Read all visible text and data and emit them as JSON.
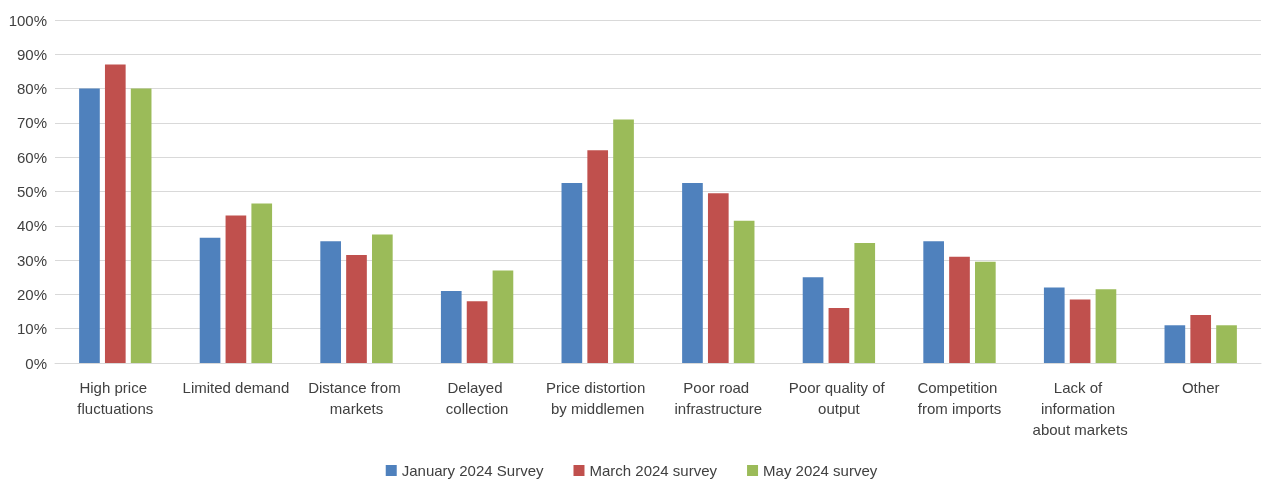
{
  "chart_data": {
    "type": "bar",
    "categories": [
      "High price fluctuations",
      "Limited demand",
      "Distance from markets",
      "Delayed collection",
      "Price distortion by middlemen",
      "Poor road infrastructure",
      "Poor quality of output",
      "Competition from imports",
      "Lack of information about markets",
      "Other"
    ],
    "series": [
      {
        "name": "January 2024 Survey",
        "color": "#4f81bd",
        "values": [
          80,
          36.5,
          35.5,
          21,
          52.5,
          52.5,
          25,
          35.5,
          22,
          11
        ]
      },
      {
        "name": "March 2024 survey",
        "color": "#c0504d",
        "values": [
          87,
          43,
          31.5,
          18,
          62,
          49.5,
          16,
          31,
          18.5,
          14
        ]
      },
      {
        "name": "May 2024 survey",
        "color": "#9bbb59",
        "values": [
          80,
          46.5,
          37.5,
          27,
          71,
          41.5,
          35,
          29.5,
          21.5,
          11
        ]
      }
    ],
    "ylim": [
      0,
      100
    ],
    "yticks": [
      {
        "value": 0,
        "label": "0%"
      },
      {
        "value": 10,
        "label": "10%"
      },
      {
        "value": 20,
        "label": "20%"
      },
      {
        "value": 30,
        "label": "30%"
      },
      {
        "value": 40,
        "label": "40%"
      },
      {
        "value": 50,
        "label": "50%"
      },
      {
        "value": 60,
        "label": "60%"
      },
      {
        "value": 70,
        "label": "70%"
      },
      {
        "value": 80,
        "label": "80%"
      },
      {
        "value": 90,
        "label": "90%"
      },
      {
        "value": 100,
        "label": "100%"
      }
    ],
    "grid": "y",
    "legend": "bottom"
  }
}
